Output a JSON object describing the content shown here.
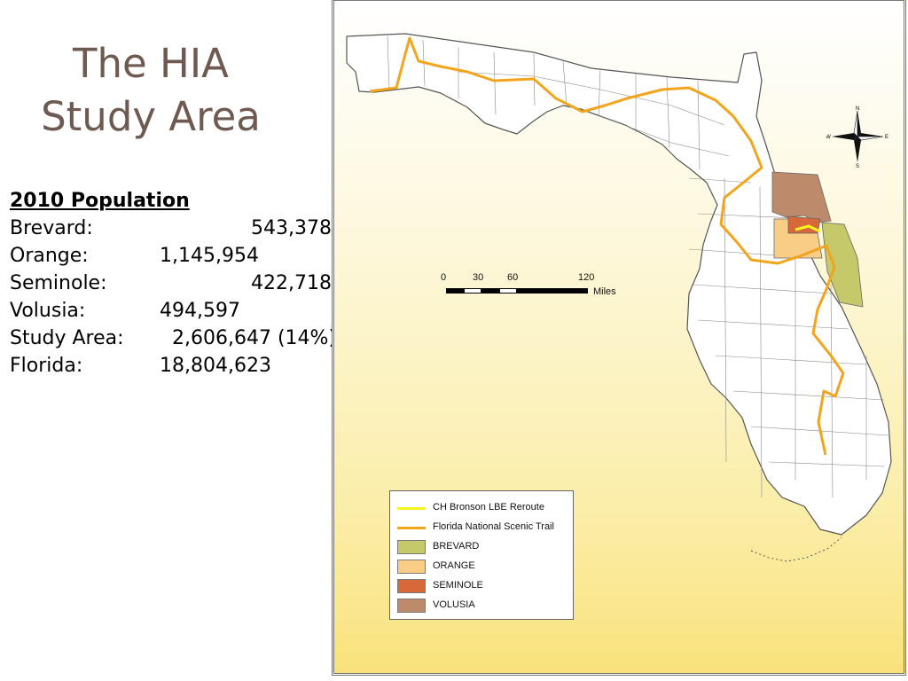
{
  "title_line1": "The HIA",
  "title_line2": "Study Area",
  "population": {
    "heading": "2010 Population",
    "rows": [
      {
        "label": "Brevard:",
        "value": "543,378"
      },
      {
        "label": "Orange:",
        "value": "1,145,954"
      },
      {
        "label": "Seminole:",
        "value": "422,718"
      },
      {
        "label": "Volusia:",
        "value": "494,597"
      },
      {
        "label": "Study Area:",
        "value": "2,606,647 (14%)"
      },
      {
        "label": "Florida:",
        "value": "18,804,623"
      }
    ]
  },
  "map": {
    "scale": {
      "ticks": [
        "0",
        "30",
        "60",
        "120"
      ],
      "unit": "Miles"
    },
    "compass": {
      "n": "N",
      "s": "S",
      "e": "E",
      "w": "W"
    },
    "legend": [
      {
        "label": "CH Bronson LBE Reroute",
        "kind": "line",
        "color": "#f5f51e"
      },
      {
        "label": "Florida National Scenic Trail",
        "kind": "line",
        "color": "#f2a51c"
      },
      {
        "label": "BREVARD",
        "kind": "fill",
        "color": "#c5c96a"
      },
      {
        "label": "ORANGE",
        "kind": "fill",
        "color": "#f9cd85"
      },
      {
        "label": "SEMINOLE",
        "kind": "fill",
        "color": "#d6683a"
      },
      {
        "label": "VOLUSIA",
        "kind": "fill",
        "color": "#bd8b6c"
      }
    ]
  }
}
